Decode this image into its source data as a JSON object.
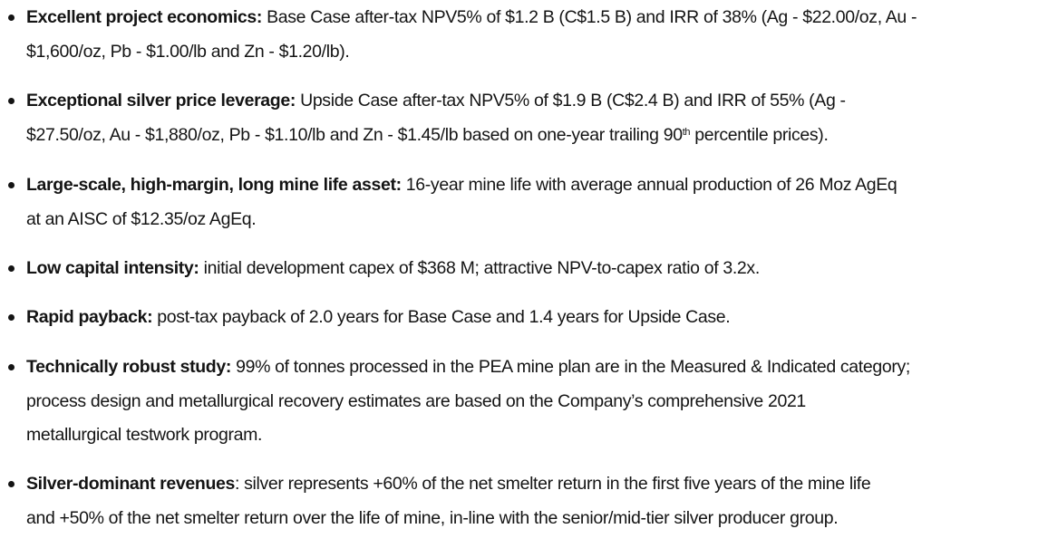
{
  "items": [
    {
      "bold": "Excellent project economics:",
      "line1": " Base Case after-tax NPV5% of $1.2 B (C$1.5 B) and IRR of 38% (Ag - $22.00/oz, Au -",
      "line2": "$1,600/oz, Pb - $1.00/lb and Zn - $1.20/lb)."
    },
    {
      "bold": "Exceptional silver price leverage:",
      "line1": " Upside Case after-tax NPV5% of $1.9 B (C$2.4 B) and IRR of 55% (Ag -",
      "line2": "$27.50/oz, Au - $1,880/oz, Pb - $1.10/lb and Zn - $1.45/lb based on one-year trailing 90",
      "line2_sup": "th",
      "line2_post": " percentile prices)."
    },
    {
      "bold": "Large-scale, high-margin, long mine life asset:",
      "line1": " 16-year mine life with average annual production of 26 Moz AgEq",
      "line2": "at an AISC of $12.35/oz AgEq."
    },
    {
      "bold": "Low capital intensity:",
      "line1": " initial development capex of $368 M; attractive NPV-to-capex ratio of 3.2x."
    },
    {
      "bold": "Rapid payback:",
      "line1": " post-tax payback of 2.0 years for Base Case and 1.4 years for Upside Case."
    },
    {
      "bold": "Technically robust study:",
      "line1": " 99% of tonnes processed in the PEA mine plan are in the Measured & Indicated category;",
      "line2": "process design and metallurgical recovery estimates are based on the Company’s comprehensive 2021",
      "line3": "metallurgical testwork program."
    },
    {
      "bold": "Silver-dominant revenues",
      "line1": ": silver represents +60% of the net smelter return in the first five years of the mine life",
      "line2": "and +50% of the net smelter return over the life of mine, in-line with the senior/mid-tier silver producer group."
    }
  ]
}
